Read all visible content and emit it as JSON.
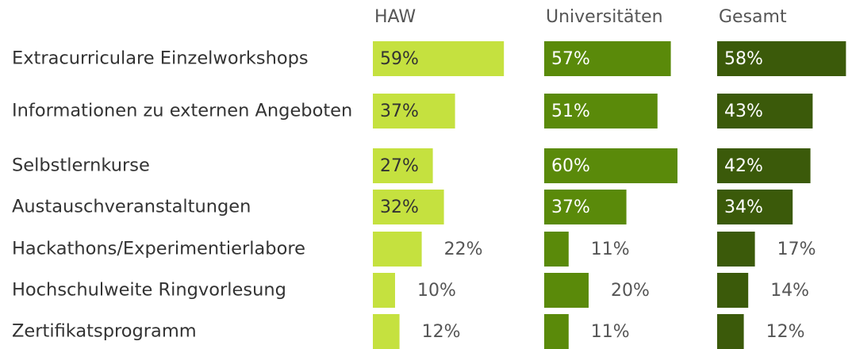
{
  "chart_data": {
    "type": "bar",
    "orientation": "horizontal",
    "categories": [
      "Extracurriculare Einzelworkshops",
      "Informationen zu externen Angeboten",
      "Selbstlernkurse",
      "Austauschveranstaltungen",
      "Hackathons/Experimentierlabore",
      "Hochschulweite Ringvorlesung",
      "Zertifikatsprogramm"
    ],
    "series": [
      {
        "name": "HAW",
        "color": "#c5e13f",
        "values": [
          59,
          37,
          27,
          32,
          22,
          10,
          12
        ],
        "value_labels": [
          "59%",
          "37%",
          "27%",
          "32%",
          "22%",
          "10%",
          "12%"
        ]
      },
      {
        "name": "Universitäten",
        "color": "#5a8a0a",
        "values": [
          57,
          51,
          60,
          37,
          11,
          20,
          11
        ],
        "value_labels": [
          "57%",
          "51%",
          "60%",
          "37%",
          "11%",
          "20%",
          "11%"
        ]
      },
      {
        "name": "Gesamt",
        "color": "#3b5a0a",
        "values": [
          58,
          43,
          42,
          34,
          17,
          14,
          12
        ],
        "value_labels": [
          "58%",
          "43%",
          "42%",
          "34%",
          "17%",
          "14%",
          "12%"
        ]
      }
    ]
  }
}
